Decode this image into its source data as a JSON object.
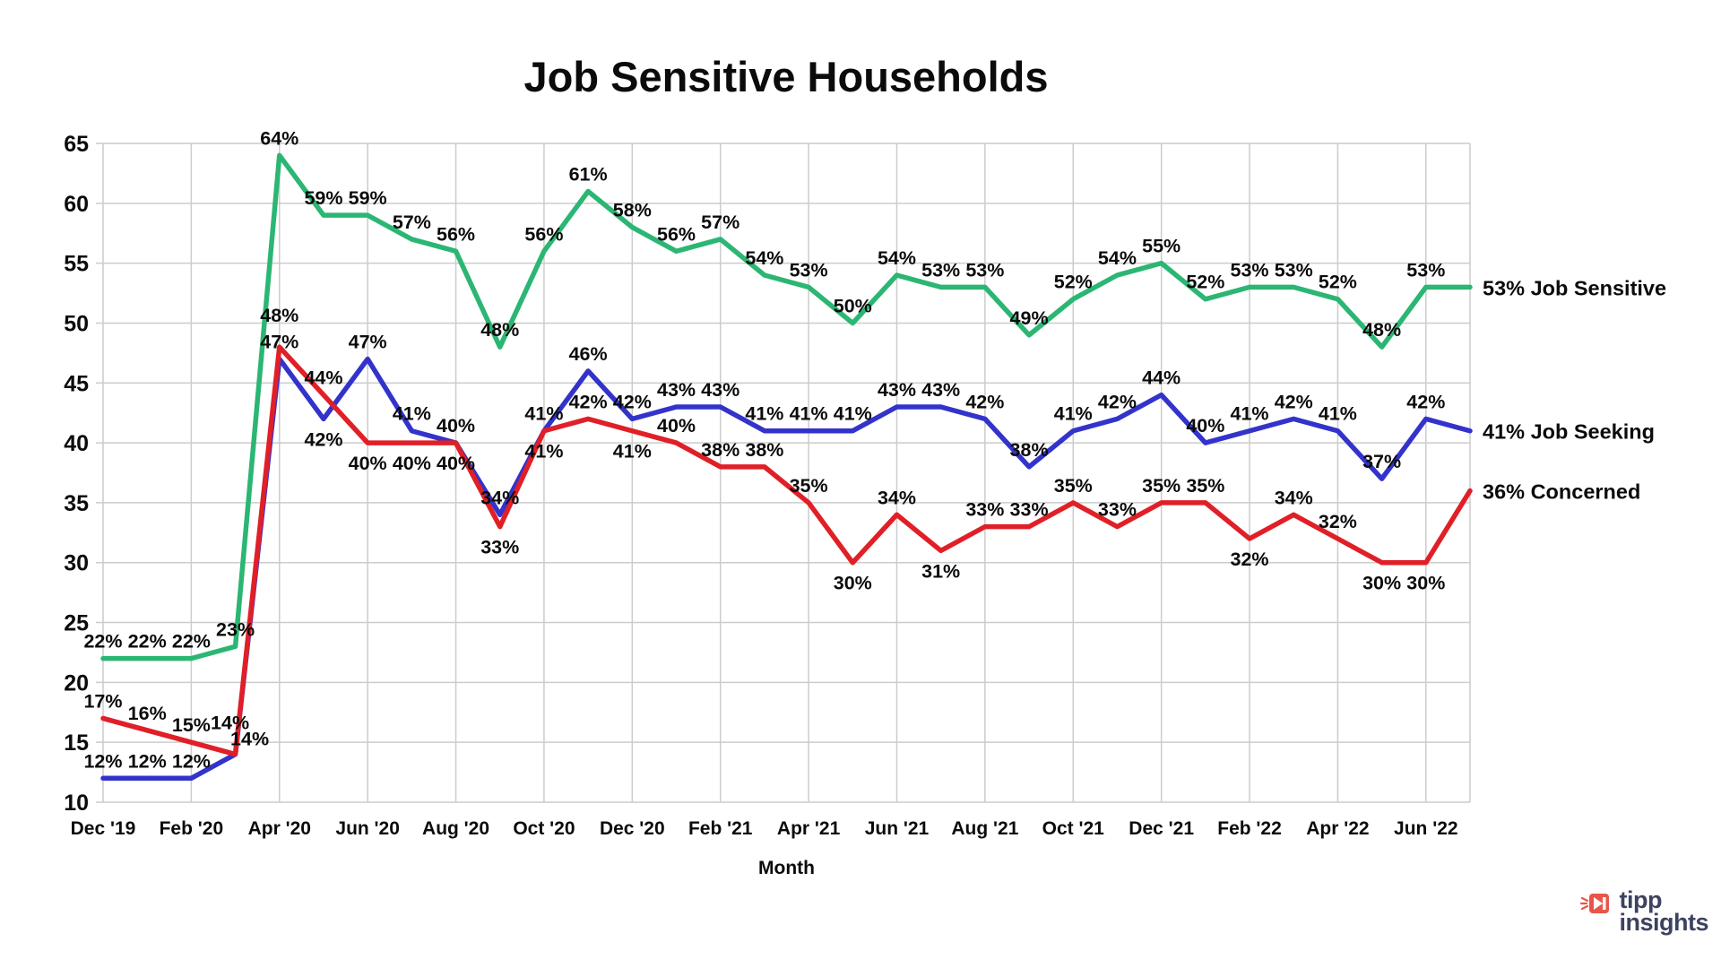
{
  "title": "Job Sensitive Households",
  "logo": {
    "line1": "tipp",
    "line2": "insights",
    "icon": "megaphone-arrow-icon",
    "icon_color": "#e8564a",
    "text_color": "#3d4260"
  },
  "chart_data": {
    "type": "line",
    "title": "Job Sensitive Households",
    "xlabel": "Month",
    "ylabel": "",
    "ylim": [
      10,
      65
    ],
    "yticks": [
      10,
      15,
      20,
      25,
      30,
      35,
      40,
      45,
      50,
      55,
      60,
      65
    ],
    "grid": true,
    "grid_color": "#cccccc",
    "x_months": [
      "Dec '19",
      "Jan '20",
      "Feb '20",
      "Mar '20",
      "Apr '20",
      "May '20",
      "Jun '20",
      "Jul '20",
      "Aug '20",
      "Sep '20",
      "Oct '20",
      "Nov '20",
      "Dec '20",
      "Jan '21",
      "Feb '21",
      "Mar '21",
      "Apr '21",
      "May '21",
      "Jun '21",
      "Jul '21",
      "Aug '21",
      "Sep '21",
      "Oct '21",
      "Nov '21",
      "Dec '21",
      "Jan '22",
      "Feb '22",
      "Mar '22",
      "Apr '22",
      "May '22",
      "Jun '22",
      "Jul '22"
    ],
    "x_tick_labels": [
      "Dec '19",
      "Feb '20",
      "Apr '20",
      "Jun '20",
      "Aug '20",
      "Oct '20",
      "Dec '20",
      "Feb '21",
      "Apr '21",
      "Jun '21",
      "Aug '21",
      "Oct '21",
      "Dec '21",
      "Feb '22",
      "Apr '22",
      "Jun '22"
    ],
    "legend_position": "right-end-labels",
    "series": [
      {
        "name": "Job Sensitive",
        "color": "#2bb673",
        "end_label": "53% Job Sensitive",
        "values": [
          22,
          22,
          22,
          23,
          64,
          59,
          59,
          57,
          56,
          48,
          56,
          61,
          58,
          56,
          57,
          54,
          53,
          50,
          54,
          53,
          53,
          49,
          52,
          54,
          55,
          52,
          53,
          53,
          52,
          48,
          53,
          53
        ],
        "labels_below": [],
        "label_offsets": {}
      },
      {
        "name": "Job Seeking",
        "color": "#3333cc",
        "end_label": "41% Job Seeking",
        "values": [
          12,
          12,
          12,
          14,
          47,
          42,
          47,
          41,
          40,
          34,
          41,
          46,
          42,
          43,
          43,
          41,
          41,
          41,
          43,
          43,
          42,
          38,
          41,
          42,
          44,
          40,
          41,
          42,
          41,
          37,
          42,
          41
        ],
        "labels_below": [
          5
        ],
        "label_offsets": {
          "3": {
            "dx": 16,
            "dy": 2
          }
        }
      },
      {
        "name": "Concerned",
        "color": "#e01f27",
        "end_label": "36% Concerned",
        "values": [
          17,
          16,
          15,
          14,
          48,
          44,
          40,
          40,
          40,
          33,
          41,
          42,
          41,
          40,
          38,
          38,
          35,
          30,
          34,
          31,
          33,
          33,
          35,
          33,
          35,
          35,
          32,
          34,
          32,
          30,
          30,
          36
        ],
        "labels_below": [
          6,
          7,
          8,
          9,
          10,
          12,
          17,
          19,
          26,
          29,
          30
        ],
        "label_offsets": {
          "3": {
            "dx": -6,
            "dy": -16
          },
          "4": {
            "dy": -16
          }
        }
      }
    ]
  }
}
